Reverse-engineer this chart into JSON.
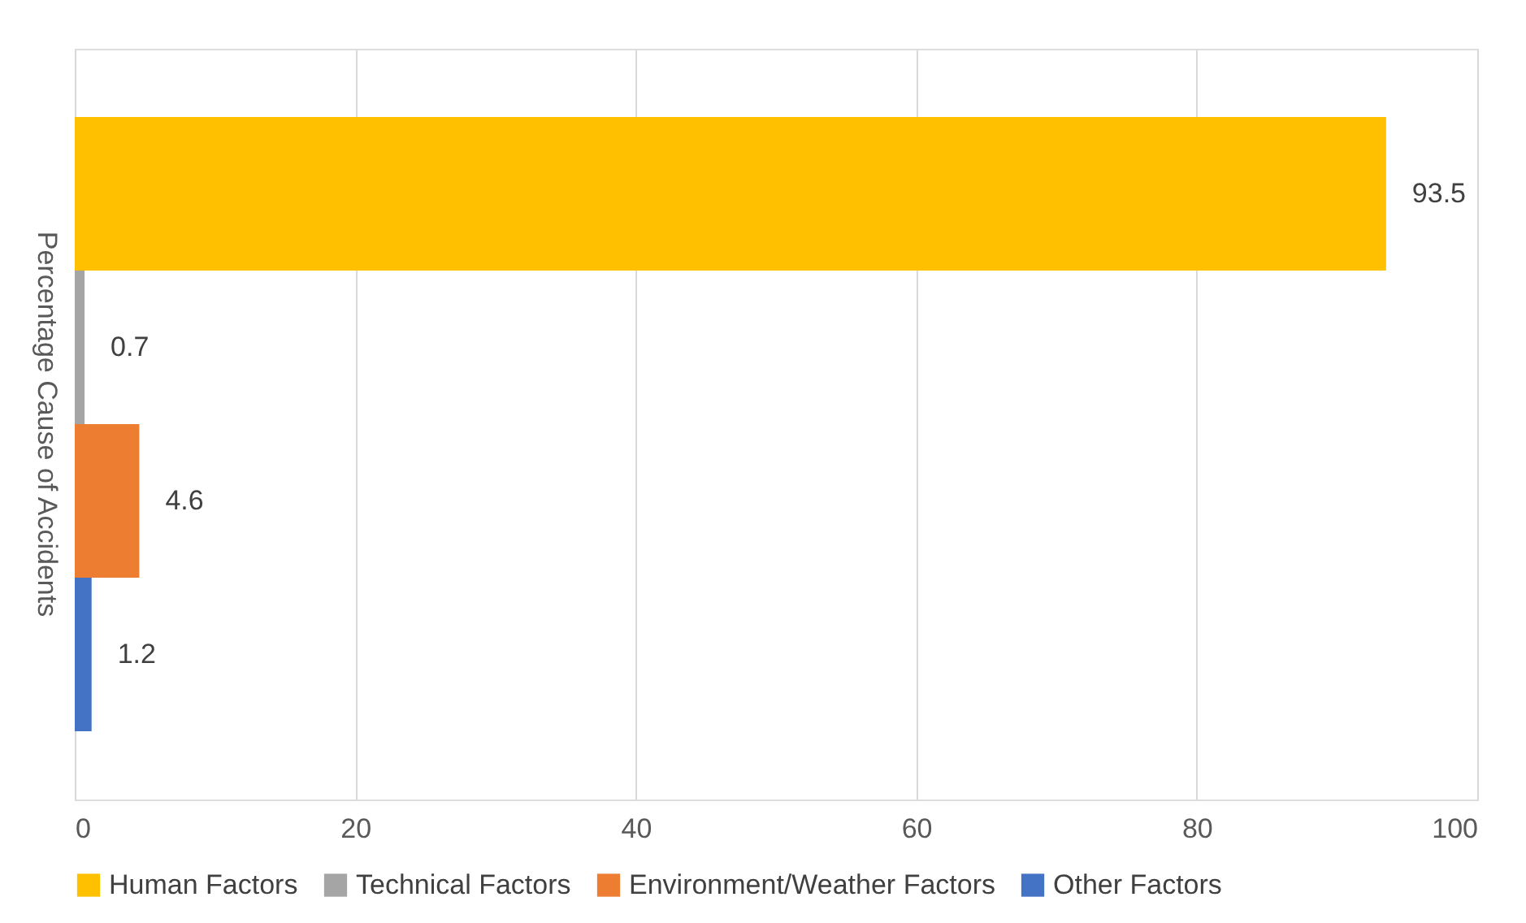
{
  "chart_data": {
    "type": "bar",
    "orientation": "horizontal",
    "categories": [
      "Percentage Cause of Accidents"
    ],
    "series": [
      {
        "name": "Human Factors",
        "color": "#ffc000",
        "values": [
          93.5
        ]
      },
      {
        "name": "Technical Factors",
        "color": "#a5a5a5",
        "values": [
          0.7
        ]
      },
      {
        "name": "Environment/Weather Factors",
        "color": "#ed7d31",
        "values": [
          4.6
        ]
      },
      {
        "name": "Other Factors",
        "color": "#4472c4",
        "values": [
          1.2
        ]
      }
    ],
    "xlim": [
      0,
      100
    ],
    "xticks": [
      0,
      20,
      40,
      60,
      80,
      100
    ],
    "grid": "x",
    "legend": "bottom",
    "data_labels": true
  }
}
